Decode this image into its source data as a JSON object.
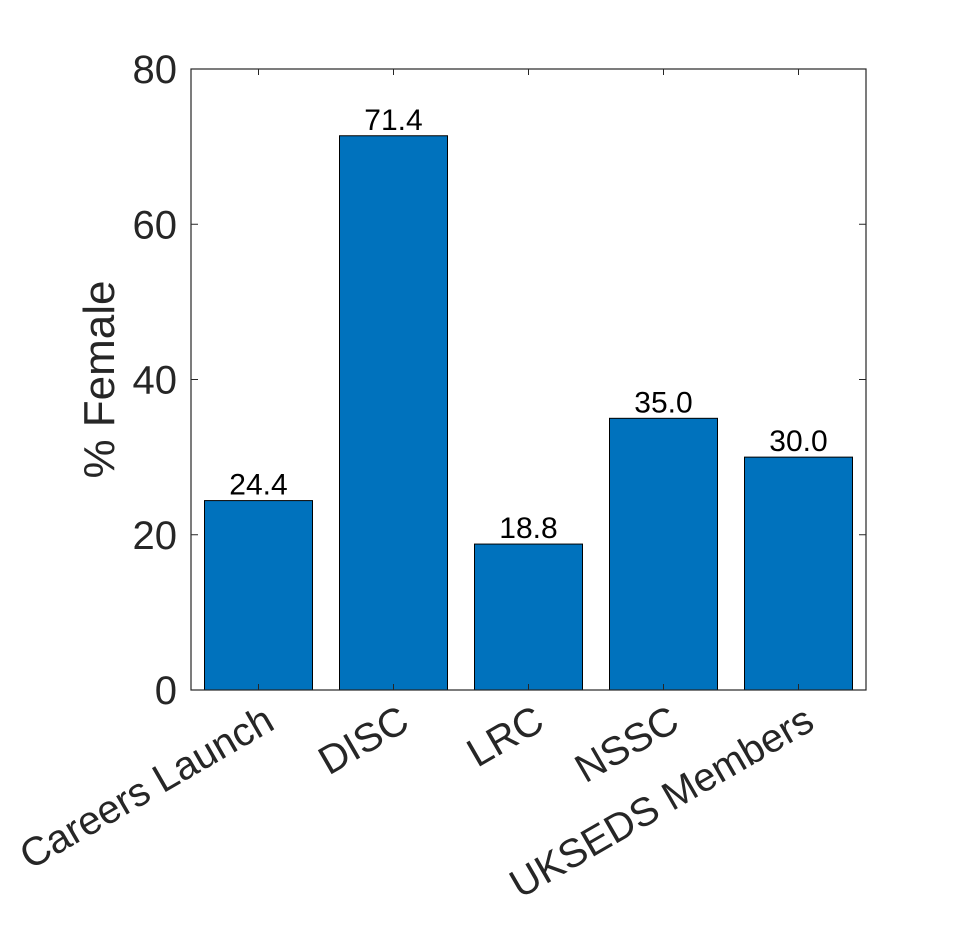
{
  "chart_data": {
    "type": "bar",
    "categories": [
      "Careers Launch",
      "DISC",
      "LRC",
      "NSSC",
      "UKSEDS Members"
    ],
    "values": [
      24.4,
      71.4,
      18.8,
      35.0,
      30.0
    ],
    "data_labels": [
      "24.4",
      "71.4",
      "18.8",
      "35.0",
      "30.0"
    ],
    "title": "",
    "xlabel": "",
    "ylabel": "% Female",
    "ylim": [
      0,
      80
    ],
    "yticks": [
      0,
      20,
      40,
      60,
      80
    ],
    "ytick_labels": [
      "0",
      "20",
      "40",
      "60",
      "80"
    ],
    "grid": false,
    "bar_color": "#0072BD"
  }
}
